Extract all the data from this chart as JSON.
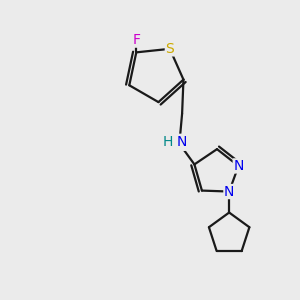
{
  "background_color": "#ebebeb",
  "black": "#1a1a1a",
  "blue": "#0000ee",
  "yellow": "#ccaa00",
  "magenta": "#cc00cc",
  "teal": "#008888",
  "bond_lw": 1.6,
  "font_size": 10,
  "xlim": [
    0,
    10
  ],
  "ylim": [
    0,
    11
  ]
}
